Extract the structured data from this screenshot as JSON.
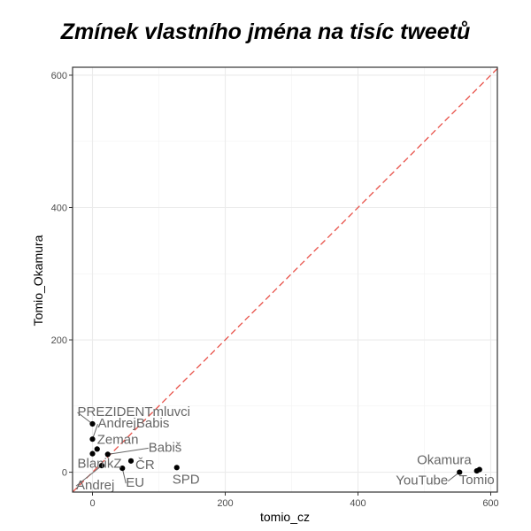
{
  "chart_data": {
    "type": "scatter",
    "title": "Zmínek vlastního jména na tisíc tweetů",
    "xlabel": "tomio_cz",
    "ylabel": "Tomio_Okamura",
    "xlim": [
      -30,
      610
    ],
    "ylim": [
      -30,
      612
    ],
    "x_ticks": [
      0,
      200,
      400,
      600
    ],
    "y_ticks": [
      0,
      200,
      400,
      600
    ],
    "x_tick_labels": [
      "0",
      "200",
      "400",
      "600"
    ],
    "y_tick_labels": [
      "0",
      "200",
      "400",
      "600"
    ],
    "grid": true,
    "reference_line": {
      "type": "identity",
      "style": "dashed",
      "color": "#e8524a"
    },
    "point_color": "#000000",
    "label_color": "#666666",
    "points": [
      {
        "label": "PREZIDENTmluvci",
        "x": 0,
        "y": 73
      },
      {
        "label": "AndrejBabis",
        "x": 0,
        "y": 50
      },
      {
        "label": "Zeman",
        "x": 7,
        "y": 35
      },
      {
        "label": "Babiš",
        "x": 23,
        "y": 27
      },
      {
        "label": "BlanikZ",
        "x": 0,
        "y": 28
      },
      {
        "label": "ČR",
        "x": 58,
        "y": 17
      },
      {
        "label": "Andrej",
        "x": 14,
        "y": 10
      },
      {
        "label": "EU",
        "x": 45,
        "y": 6
      },
      {
        "label": "SPD",
        "x": 127,
        "y": 7
      },
      {
        "label": "Okamura",
        "x": 583,
        "y": 4
      },
      {
        "label": "Tomio",
        "x": 579,
        "y": 2
      },
      {
        "label": "YouTube",
        "x": 553,
        "y": 0
      }
    ]
  }
}
